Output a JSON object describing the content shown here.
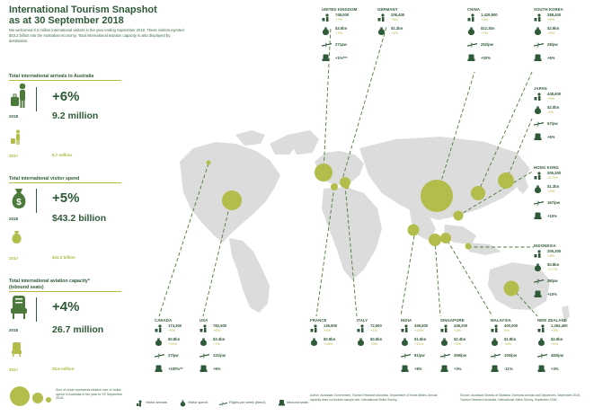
{
  "header": {
    "title_line1": "International Tourism Snapshot",
    "title_line2": "as at 30 September 2018",
    "intro": "We welcomed 9.2 million international visitors in the year ending September 2018. These visitors injected $43.2 billion into the Australian economy. Total international aviation capacity is also displayed by destination."
  },
  "arrivals": {
    "title": "Total international arrivals to Australia",
    "pct": "+6%",
    "year_current": "2018",
    "value_current": "9.2 million",
    "year_prev": "2017",
    "value_prev": "8.7 million"
  },
  "spend": {
    "title": "Total international visitor spend",
    "pct": "+5%",
    "year_current": "2018",
    "value_current": "$43.2 billion",
    "year_prev": "2017",
    "value_prev": "$41.2 billion"
  },
  "aviation": {
    "title_line1": "Total international aviation capacity*",
    "title_line2": "(inbound seats)",
    "pct": "+4%",
    "year_current": "2018",
    "value_current": "26.7 million",
    "year_prev": "2017",
    "value_prev": "25.6 million"
  },
  "legend": {
    "circle_note": "Size of circle represents relative size of visitor spend in Australia in the year to YE September 2018",
    "items": [
      "Visitor arrivals",
      "Visitor spend",
      "Flights per week (direct)",
      "Inbound seats"
    ]
  },
  "footnotes": {
    "left": "Author: Australian Government, Tourism Research Australia, Department of Home Affairs. Annual capacity does not include sample size. International Visitor Survey...",
    "right": "Source: Australian Bureau of Statistics Overseas Arrivals and Departures, September 2018; Tourism Research Australia, International Visitor Survey, September 2018..."
  },
  "countries": [
    {
      "name": "UNITED KINGDOM",
      "arr": "748,000",
      "arr_g": "+7%",
      "spend": "$3.5bn",
      "spend_g": "+3%",
      "fpw": "271pw",
      "seats": "+1%***"
    },
    {
      "name": "GERMANY",
      "arr": "208,400",
      "arr_g": "+3%",
      "spend": "$1.2bn",
      "spend_g": "+1%"
    },
    {
      "name": "CHINA",
      "arr": "1,429,800",
      "arr_g": "+5%",
      "spend": "$12.3bn",
      "spend_g": "+7%",
      "fpw": "252/pw",
      "seats": "+20%"
    },
    {
      "name": "SOUTH KOREA",
      "arr": "288,400",
      "arr_g": "+6%",
      "spend": "$2.6bn",
      "spend_g": "+5%",
      "fpw": "28/pw",
      "seats": "+6%"
    },
    {
      "name": "JAPAN",
      "arr": "448,600",
      "arr_g": "+5%",
      "spend": "$2.0bn",
      "spend_g": "-4%",
      "fpw": "57/pw",
      "seats": "+6%"
    },
    {
      "name": "HONG KONG",
      "arr": "305,300",
      "arr_g": "+2.2%",
      "spend": "$1.3bn",
      "spend_g": "+2%",
      "fpw": "167/pw",
      "seats": "+10%"
    },
    {
      "name": "INDONESIA",
      "arr": "205,300",
      "arr_g": "+5%",
      "spend": "$0.8bn",
      "spend_g": "+2.7%",
      "fpw": "28/pw",
      "seats": "+10%"
    },
    {
      "name": "CANADA",
      "arr": "174,300",
      "arr_g": "+6%",
      "spend": "$0.8bn",
      "spend_g": "+11%",
      "fpw": "27/pw",
      "seats": "+100%**"
    },
    {
      "name": "USA",
      "arr": "782,500",
      "arr_g": "+6%",
      "spend": "$3.4bn",
      "spend_g": "+7%",
      "fpw": "121/pw",
      "seats": "+6%"
    },
    {
      "name": "FRANCE",
      "arr": "136,800",
      "arr_g": "+5%",
      "spend": "$0.8bn",
      "spend_g": "+28%"
    },
    {
      "name": "ITALY",
      "arr": "72,500",
      "arr_g": "+1%",
      "spend": "$0.5bn",
      "spend_g": "+3%"
    },
    {
      "name": "INDIA",
      "arr": "349,500",
      "arr_g": "+23%",
      "spend": "$1.6bn",
      "spend_g": "+11%",
      "fpw": "81/pw",
      "seats": "+8%"
    },
    {
      "name": "SINGAPORE",
      "arr": "438,200",
      "arr_g": "+2%",
      "spend": "$2.4bn",
      "spend_g": "+3%",
      "fpw": "259/pw",
      "seats": "+3%"
    },
    {
      "name": "MALAYSIA",
      "arr": "400,000",
      "arr_g": "0%",
      "spend": "$1.8bn",
      "spend_g": "+6%",
      "fpw": "100/pw",
      "seats": "-11%"
    },
    {
      "name": "NEW ZEALAND",
      "arr": "1,354,400",
      "arr_g": "+4%",
      "spend": "$2.6bn",
      "spend_g": "+4%",
      "fpw": "483/pw",
      "seats": "+3%"
    }
  ],
  "colors": {
    "dark": "#2f5a38",
    "lime": "#b2bd4c",
    "map": "#dcdcdc"
  }
}
